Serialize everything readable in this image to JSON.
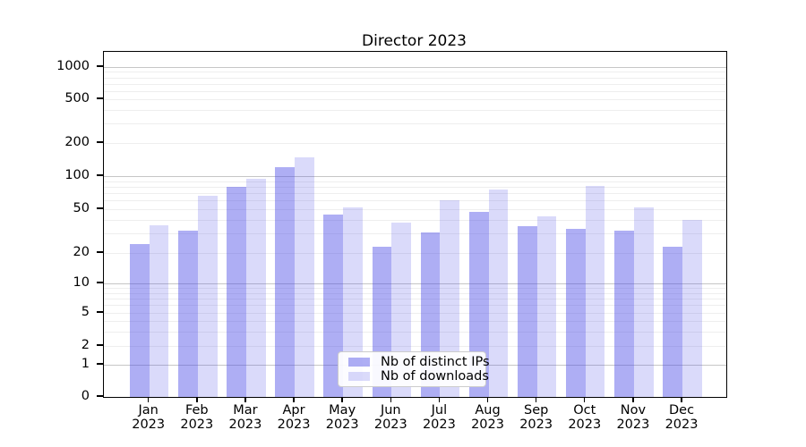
{
  "title": "Director 2023",
  "legend": {
    "items": [
      {
        "label": "Nb of distinct IPs",
        "color": "rgba(70,70,230,0.44)"
      },
      {
        "label": "Nb of downloads",
        "color": "rgba(70,70,230,0.20)"
      }
    ]
  },
  "axes": {
    "y_tick_labels": [
      "1000",
      "500",
      "200",
      "100",
      "50",
      "20",
      "10",
      "5",
      "2",
      "1",
      "0"
    ],
    "y_tick_values": [
      1000,
      500,
      200,
      100,
      50,
      20,
      10,
      5,
      2,
      1,
      0
    ],
    "months": [
      "Jan",
      "Feb",
      "Mar",
      "Apr",
      "May",
      "Jun",
      "Jul",
      "Aug",
      "Sep",
      "Oct",
      "Nov",
      "Dec"
    ],
    "year": "2023"
  },
  "chart_data": {
    "type": "bar",
    "title": "Director 2023",
    "categories": [
      "Jan 2023",
      "Feb 2023",
      "Mar 2023",
      "Apr 2023",
      "May 2023",
      "Jun 2023",
      "Jul 2023",
      "Aug 2023",
      "Sep 2023",
      "Oct 2023",
      "Nov 2023",
      "Dec 2023"
    ],
    "series": [
      {
        "name": "Nb of distinct IPs",
        "values": [
          24,
          32,
          80,
          120,
          45,
          23,
          31,
          47,
          35,
          33,
          32,
          23
        ]
      },
      {
        "name": "Nb of downloads",
        "values": [
          36,
          66,
          95,
          149,
          52,
          38,
          60,
          75,
          43,
          81,
          52,
          40
        ]
      }
    ],
    "xlabel": "",
    "ylabel": "",
    "yscale": "asinh (log-like above 1, linear to 0)",
    "y_ticks": [
      0,
      1,
      2,
      5,
      10,
      20,
      50,
      100,
      200,
      500,
      1000
    ],
    "ylim": [
      0,
      1400
    ],
    "grid": "horizontal major + faint minor lines",
    "legend_position": "lower center"
  },
  "colors": {
    "bar_distinct_ips": "rgba(70,70,230,0.44)",
    "bar_distinct_ips_hex": "#a9a9f2",
    "bar_downloads": "rgba(70,70,230,0.20)",
    "bar_downloads_hex": "#d8d8f7",
    "grid_major": "#c6c6c6",
    "grid_minor": "#eeeeee",
    "axis": "#000000",
    "legend_border": "#cccccc",
    "text": "#000000"
  }
}
